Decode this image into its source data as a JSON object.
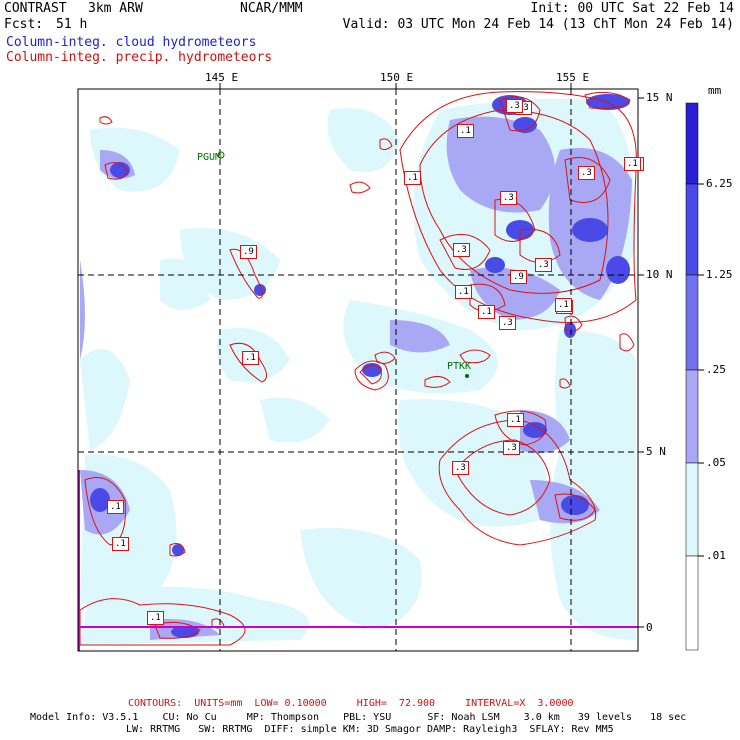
{
  "header": {
    "model_name": "CONTRAST",
    "resolution": "3km ARW",
    "org": "NCAR/MMM",
    "forecast_label": "Fcst:",
    "forecast_hours": "51 h",
    "init": "Init: 00 UTC Sat 22 Feb 14",
    "valid": "Valid: 03 UTC Mon 24 Feb 14 (13 ChT Mon 24 Feb 14)",
    "field_cloud": "Column-integ. cloud hydrometeors",
    "field_precip": "Column-integ. precip. hydrometeors"
  },
  "axes": {
    "lon_labels": [
      "145 E",
      "150 E",
      "155 E"
    ],
    "lat_labels": [
      "15 N",
      "10 N",
      "5 N",
      "0"
    ]
  },
  "stations": [
    {
      "name": "PGUM"
    },
    {
      "name": "PTKK"
    }
  ],
  "contour_labels": [
    ".1",
    ".3",
    ".1",
    ".3",
    ".3",
    ".9",
    ".3",
    ".3",
    ".3",
    ".9",
    ".3",
    ".1",
    ".3",
    ".1",
    ".1",
    ".1",
    ".1",
    ".3",
    ".1",
    ".3",
    ".1",
    ".3",
    ".1",
    ".1"
  ],
  "colorbar": {
    "unit": "mm",
    "levels": [
      "6.25",
      "1.25",
      ".25",
      ".05",
      ".01"
    ],
    "colors": [
      "#2a1fd6",
      "#4a4ae6",
      "#7272ee",
      "#a8a8f4",
      "#dcf8fc",
      "#ffffff"
    ]
  },
  "footer": {
    "contours": "CONTOURS:  UNITS=mm  LOW= 0.10000     HIGH=  72.900     INTERVAL=X  3.0000",
    "model_info_1": "Model Info: V3.5.1    CU: No Cu     MP: Thompson    PBL: YSU      SF: Noah LSM    3.0 km   39 levels   18 sec",
    "model_info_2": "LW: RRTMG   SW: RRTMG  DIFF: simple KM: 3D Smagor DAMP: Rayleigh3  SFLAY: Rev MM5"
  },
  "colors": {
    "cloud_text": "#2020d0",
    "precip_text": "#d01010",
    "contour": "#e01010",
    "station": "#007000",
    "equator_line": "#cc00cc"
  }
}
